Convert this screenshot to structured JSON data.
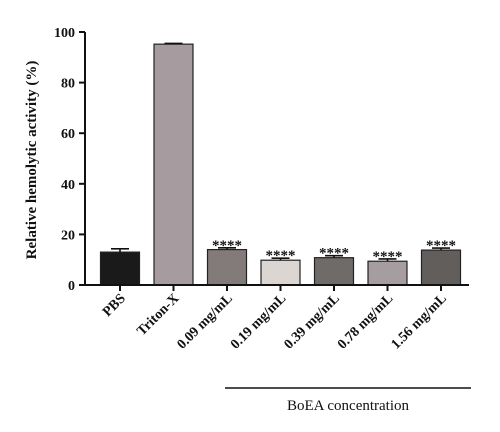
{
  "chart_data": {
    "type": "bar",
    "ylabel": "Relative hemolytic activity (%)",
    "ylim": [
      0,
      100
    ],
    "yticks": [
      0,
      20,
      40,
      60,
      80,
      100
    ],
    "categories": [
      "PBS",
      "Triton-X",
      "0.09 mg/mL",
      "0.19 mg/mL",
      "0.39 mg/mL",
      "0.78 mg/mL",
      "1.56 mg/mL"
    ],
    "values": [
      13.0,
      95.2,
      14.0,
      9.8,
      10.8,
      9.4,
      13.8
    ],
    "errors": [
      1.3,
      0.3,
      0.7,
      0.8,
      0.8,
      0.9,
      0.8
    ],
    "annotations": [
      "",
      "",
      "****",
      "****",
      "****",
      "****",
      "****"
    ],
    "colors": [
      "#1a1a1a",
      "#a69b9e",
      "#837b79",
      "#dcd6d3",
      "#6f6b68",
      "#a59d9f",
      "#625e5c"
    ],
    "group_label": "BoEA concentration",
    "group_categories": [
      2,
      6
    ]
  }
}
